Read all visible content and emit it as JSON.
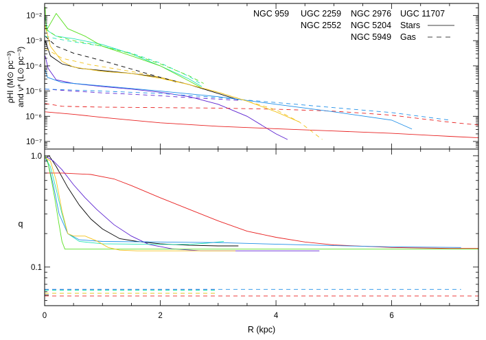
{
  "chart_data": {
    "type": "line",
    "xlabel": "R (kpc)",
    "xlim": [
      0,
      7.5
    ],
    "x_ticks": [
      0,
      2,
      4,
      6
    ],
    "top_panel": {
      "ylabel_line1": "ρHI (M⊙ pc⁻³)",
      "ylabel_line2": "and ν* (L⊙ pc⁻³)",
      "yscale": "log",
      "ylim": [
        5e-08,
        0.03
      ],
      "y_ticks": [
        {
          "v": 1e-07,
          "label": "10⁻⁷"
        },
        {
          "v": 1e-06,
          "label": "10⁻⁶"
        },
        {
          "v": 1e-05,
          "label": "10⁻⁵"
        },
        {
          "v": 0.0001,
          "label": "10⁻⁴"
        },
        {
          "v": 0.001,
          "label": "10⁻³"
        },
        {
          "v": 0.01,
          "label": "10⁻²"
        }
      ]
    },
    "bottom_panel": {
      "ylabel": "q",
      "yscale": "log",
      "ylim": [
        0.045,
        1.15
      ],
      "y_ticks": [
        {
          "v": 0.1,
          "label": "0.1"
        },
        {
          "v": 1.0,
          "label": "1.0"
        }
      ]
    },
    "legend": {
      "galaxies": [
        {
          "name": "NGC 959",
          "color": "#000000"
        },
        {
          "name": "UGC 2259",
          "color": "#5a1fd0"
        },
        {
          "name": "NGC 2976",
          "color": "#22e4b4"
        },
        {
          "name": "UGC 11707",
          "color": "#e82020"
        },
        {
          "name": "NGC 2552",
          "color": "#1e8ee8"
        },
        {
          "name": "NGC 5204",
          "color": "#58e020"
        },
        {
          "name": "NGC 5949",
          "color": "#f2c21a"
        }
      ],
      "stars_label": "Stars",
      "gas_label": "Gas"
    },
    "series": [
      {
        "name": "NGC 959",
        "color": "#000000",
        "stars": [
          [
            0.01,
            0.001
          ],
          [
            0.1,
            0.00025
          ],
          [
            0.3,
            0.00012
          ],
          [
            0.6,
            8e-05
          ],
          [
            1.0,
            6.5e-05
          ],
          [
            1.5,
            5e-05
          ],
          [
            2.0,
            3.5e-05
          ],
          [
            2.5,
            1.8e-05
          ],
          [
            3.0,
            8e-06
          ],
          [
            3.35,
            4.5e-06
          ]
        ],
        "gas": [
          [
            0.01,
            0.0015
          ],
          [
            0.2,
            0.0006
          ],
          [
            0.5,
            0.00032
          ],
          [
            1.0,
            0.00016
          ],
          [
            1.5,
            7.5e-05
          ],
          [
            2.0,
            3.5e-05
          ],
          [
            2.3,
            2.2e-05
          ]
        ],
        "q_stars": [
          [
            0.01,
            0.96
          ],
          [
            0.08,
            1.0
          ],
          [
            0.2,
            0.8
          ],
          [
            0.4,
            0.52
          ],
          [
            0.6,
            0.36
          ],
          [
            0.8,
            0.27
          ],
          [
            1.0,
            0.22
          ],
          [
            1.3,
            0.18
          ],
          [
            1.6,
            0.17
          ],
          [
            2.0,
            0.162
          ],
          [
            2.5,
            0.157
          ],
          [
            3.0,
            0.155
          ],
          [
            3.35,
            0.155
          ]
        ],
        "q_gas": [
          [
            0.0,
            0.056
          ],
          [
            0.1,
            0.056
          ]
        ]
      },
      {
        "name": "UGC 2259",
        "color": "#5a1fd0",
        "stars": [
          [
            0.01,
            0.00025
          ],
          [
            0.06,
            8e-05
          ],
          [
            0.2,
            2.8e-05
          ],
          [
            0.5,
            2e-05
          ],
          [
            1.0,
            1.5e-05
          ],
          [
            1.5,
            1.2e-05
          ],
          [
            2.0,
            9e-06
          ],
          [
            2.5,
            6e-06
          ],
          [
            3.0,
            3e-06
          ],
          [
            3.5,
            1e-06
          ],
          [
            4.0,
            2e-07
          ],
          [
            4.2,
            1.2e-07
          ]
        ],
        "gas": [
          [
            0.01,
            1.2e-05
          ],
          [
            0.5,
            1e-05
          ],
          [
            1.0,
            8.5e-06
          ],
          [
            1.5,
            7.5e-06
          ],
          [
            2.0,
            6.5e-06
          ],
          [
            2.5,
            5.5e-06
          ],
          [
            3.0,
            4.8e-06
          ],
          [
            3.4,
            4.2e-06
          ]
        ],
        "q_stars": [
          [
            0.01,
            0.98
          ],
          [
            0.06,
            0.96
          ],
          [
            0.15,
            0.9
          ],
          [
            0.3,
            0.75
          ],
          [
            0.5,
            0.55
          ],
          [
            0.7,
            0.42
          ],
          [
            0.9,
            0.33
          ],
          [
            1.2,
            0.24
          ],
          [
            1.5,
            0.19
          ],
          [
            1.8,
            0.16
          ],
          [
            2.2,
            0.146
          ],
          [
            2.7,
            0.14
          ],
          [
            3.3,
            0.14
          ],
          [
            4.75,
            0.14
          ]
        ],
        "q_gas": [
          [
            0.0,
            0.063
          ],
          [
            3.0,
            0.063
          ]
        ]
      },
      {
        "name": "NGC 2976",
        "color": "#22e4b4",
        "stars": [
          [
            0.01,
            0.008
          ],
          [
            0.05,
            0.0025
          ],
          [
            0.2,
            0.0015
          ],
          [
            0.5,
            0.0012
          ],
          [
            1.0,
            0.0007
          ],
          [
            1.5,
            0.0003
          ],
          [
            2.0,
            0.0001
          ],
          [
            2.5,
            3e-05
          ],
          [
            2.72,
            1.5e-05
          ]
        ],
        "gas": [
          [
            0.01,
            0.0015
          ],
          [
            0.2,
            0.0012
          ],
          [
            0.5,
            0.0009
          ],
          [
            1.0,
            0.0006
          ],
          [
            1.5,
            0.00032
          ],
          [
            2.0,
            0.00013
          ],
          [
            2.5,
            3.8e-05
          ],
          [
            2.72,
            1.8e-05
          ]
        ],
        "q_stars": [
          [
            0.01,
            0.96
          ],
          [
            0.1,
            0.8
          ],
          [
            0.2,
            0.5
          ],
          [
            0.3,
            0.3
          ],
          [
            0.4,
            0.2
          ],
          [
            0.6,
            0.17
          ],
          [
            1.0,
            0.162
          ],
          [
            2.0,
            0.16
          ],
          [
            2.5,
            0.16
          ],
          [
            2.8,
            0.164
          ],
          [
            3.1,
            0.17
          ]
        ],
        "q_gas": [
          [
            0.0,
            0.062
          ],
          [
            3.0,
            0.062
          ]
        ]
      },
      {
        "name": "UGC 11707",
        "color": "#e82020",
        "stars": [
          [
            0.01,
            1.5e-06
          ],
          [
            0.5,
            1.2e-06
          ],
          [
            1.0,
            9e-07
          ],
          [
            1.5,
            7e-07
          ],
          [
            2.0,
            5.5e-07
          ],
          [
            3.0,
            4e-07
          ],
          [
            4.0,
            3.2e-07
          ],
          [
            5.0,
            2.6e-07
          ],
          [
            6.0,
            2.1e-07
          ],
          [
            7.0,
            1.6e-07
          ],
          [
            7.5,
            1.4e-07
          ]
        ],
        "gas": [
          [
            0.01,
            3.2e-06
          ],
          [
            0.3,
            2.5e-06
          ],
          [
            1.0,
            2.3e-06
          ],
          [
            2.0,
            2.2e-06
          ],
          [
            3.0,
            2.1e-06
          ],
          [
            4.0,
            1.9e-06
          ],
          [
            5.0,
            1.6e-06
          ],
          [
            6.0,
            1.1e-06
          ],
          [
            6.5,
            8e-07
          ],
          [
            7.0,
            5.8e-07
          ],
          [
            7.5,
            4.5e-07
          ]
        ],
        "q_stars": [
          [
            0.01,
            0.7
          ],
          [
            0.3,
            0.7
          ],
          [
            0.8,
            0.68
          ],
          [
            1.2,
            0.62
          ],
          [
            1.5,
            0.54
          ],
          [
            2.0,
            0.42
          ],
          [
            2.5,
            0.33
          ],
          [
            3.0,
            0.26
          ],
          [
            3.5,
            0.21
          ],
          [
            4.0,
            0.185
          ],
          [
            4.5,
            0.168
          ],
          [
            5.0,
            0.158
          ],
          [
            6.0,
            0.15
          ],
          [
            7.0,
            0.147
          ],
          [
            7.5,
            0.147
          ]
        ],
        "q_gas": [
          [
            0.0,
            0.055
          ],
          [
            7.5,
            0.055
          ]
        ]
      },
      {
        "name": "NGC 2552",
        "color": "#1e8ee8",
        "stars": [
          [
            0.01,
            7e-05
          ],
          [
            0.05,
            3.5e-05
          ],
          [
            0.3,
            2.2e-05
          ],
          [
            1.0,
            1.6e-05
          ],
          [
            2.0,
            1e-05
          ],
          [
            3.0,
            6e-06
          ],
          [
            4.0,
            3e-06
          ],
          [
            5.0,
            1.5e-06
          ],
          [
            6.0,
            7e-07
          ],
          [
            6.35,
            3.1e-07
          ]
        ],
        "gas": [
          [
            0.01,
            1.2e-05
          ],
          [
            1.0,
            1e-05
          ],
          [
            2.0,
            8e-06
          ],
          [
            3.0,
            5.5e-06
          ],
          [
            4.0,
            3.5e-06
          ],
          [
            5.0,
            2.2e-06
          ],
          [
            6.0,
            1.4e-06
          ],
          [
            7.0,
            7e-07
          ]
        ],
        "q_stars": [
          [
            0.01,
            0.96
          ],
          [
            0.06,
            0.85
          ],
          [
            0.15,
            0.55
          ],
          [
            0.25,
            0.3
          ],
          [
            0.4,
            0.2
          ],
          [
            0.6,
            0.176
          ],
          [
            1.0,
            0.17
          ],
          [
            2.0,
            0.168
          ],
          [
            3.0,
            0.166
          ],
          [
            4.5,
            0.158
          ],
          [
            6.0,
            0.152
          ],
          [
            7.2,
            0.15
          ]
        ],
        "q_gas": [
          [
            0.0,
            0.063
          ],
          [
            7.2,
            0.063
          ]
        ]
      },
      {
        "name": "NGC 5204",
        "color": "#58e020",
        "stars": [
          [
            0.01,
            0.022
          ],
          [
            0.03,
            0.0025
          ],
          [
            0.2,
            0.012
          ],
          [
            0.4,
            0.003
          ],
          [
            0.7,
            0.0015
          ],
          [
            1.0,
            0.0006
          ],
          [
            1.5,
            0.00025
          ],
          [
            2.0,
            0.0001
          ],
          [
            2.5,
            2.5e-05
          ],
          [
            2.7,
            1.4e-05
          ]
        ],
        "gas": [
          [
            0.01,
            0.003
          ],
          [
            0.2,
            0.0015
          ],
          [
            0.5,
            0.001
          ],
          [
            1.0,
            0.0006
          ],
          [
            1.5,
            0.0003
          ],
          [
            2.0,
            0.00012
          ],
          [
            2.5,
            4e-05
          ],
          [
            2.75,
            2e-05
          ]
        ],
        "q_stars": [
          [
            0.01,
            1.0
          ],
          [
            0.05,
            0.9
          ],
          [
            0.12,
            0.6
          ],
          [
            0.18,
            0.4
          ],
          [
            0.25,
            0.24
          ],
          [
            0.3,
            0.17
          ],
          [
            0.35,
            0.145
          ],
          [
            0.5,
            0.145
          ],
          [
            2.0,
            0.145
          ],
          [
            5.0,
            0.145
          ],
          [
            7.5,
            0.145
          ]
        ],
        "q_gas": [
          [
            0.0,
            0.058
          ],
          [
            3.0,
            0.058
          ]
        ]
      },
      {
        "name": "NGC 5949",
        "color": "#f2c21a",
        "stars": [
          [
            0.01,
            0.004
          ],
          [
            0.1,
            0.0006
          ],
          [
            0.3,
            0.00015
          ],
          [
            0.5,
            9e-05
          ],
          [
            1.0,
            6e-05
          ],
          [
            1.5,
            5e-05
          ],
          [
            2.0,
            3.2e-05
          ],
          [
            2.5,
            1.8e-05
          ],
          [
            3.0,
            9e-06
          ],
          [
            3.5,
            4e-06
          ],
          [
            4.0,
            1.5e-06
          ],
          [
            4.4,
            6e-07
          ]
        ],
        "gas": [
          [
            0.01,
            0.0005
          ],
          [
            0.3,
            0.0002
          ],
          [
            0.8,
            0.00011
          ],
          [
            1.5,
            6e-05
          ],
          [
            2.0,
            3.5e-05
          ],
          [
            2.5,
            1.8e-05
          ],
          [
            3.0,
            9e-06
          ],
          [
            3.5,
            4e-06
          ],
          [
            4.0,
            1.8e-06
          ],
          [
            4.4,
            6e-07
          ],
          [
            4.8,
            1.2e-07
          ]
        ],
        "q_stars": [
          [
            0.01,
            0.96
          ],
          [
            0.1,
            0.9
          ],
          [
            0.2,
            0.6
          ],
          [
            0.3,
            0.32
          ],
          [
            0.4,
            0.2
          ],
          [
            0.5,
            0.19
          ],
          [
            0.7,
            0.19
          ],
          [
            0.9,
            0.172
          ],
          [
            1.1,
            0.15
          ],
          [
            1.3,
            0.142
          ],
          [
            1.6,
            0.14
          ],
          [
            2.5,
            0.14
          ],
          [
            3.3,
            0.14
          ]
        ],
        "q_gas": [
          [
            0.0,
            0.058
          ],
          [
            3.0,
            0.058
          ]
        ]
      }
    ]
  }
}
